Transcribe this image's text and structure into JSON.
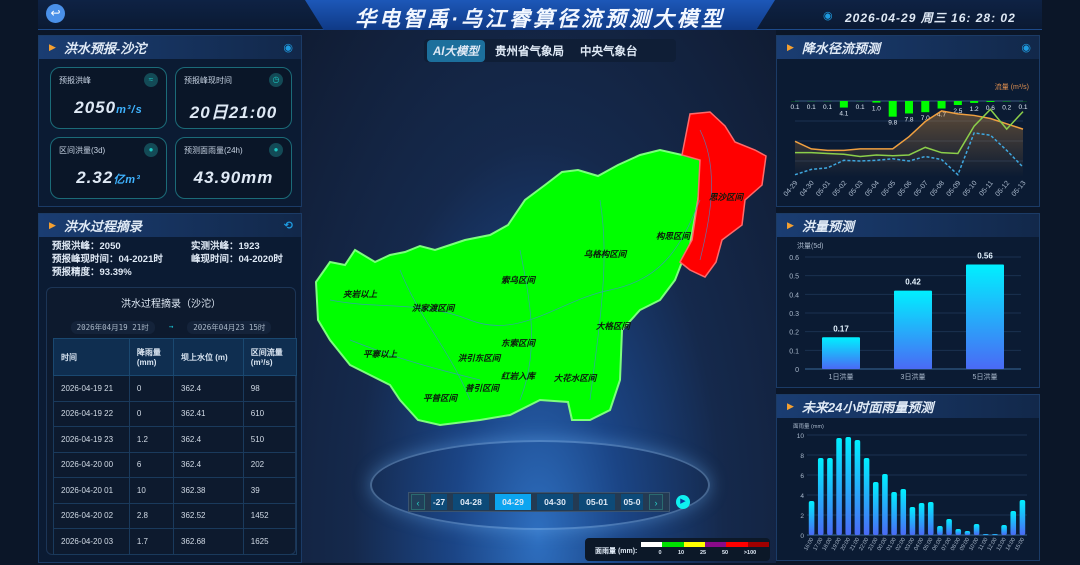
{
  "header": {
    "title": "华电智禹·乌江睿算径流预测大模型",
    "datetime": "2026-04-29 周三 16: 28: 02",
    "back_icon": "back-arrow-icon",
    "eye_icon": "eye-icon"
  },
  "source_tabs": [
    {
      "label": "AI大模型",
      "active": true
    },
    {
      "label": "贵州省气象局",
      "active": false
    },
    {
      "label": "中央气象台",
      "active": false
    }
  ],
  "flood_forecast": {
    "title": "洪水预报-沙沱",
    "cards": [
      {
        "label": "预报洪峰",
        "value": "2050",
        "unit": "m³/s",
        "icon": "flow-icon"
      },
      {
        "label": "预报峰现时间",
        "value": "20日21:00",
        "unit": "",
        "icon": "clock-icon"
      },
      {
        "label": "区间洪量(3d)",
        "value": "2.32",
        "unit": "亿m³",
        "icon": "drop-icon"
      },
      {
        "label": "预测面雨量(24h)",
        "value": "43.90mm",
        "unit": "",
        "icon": "drop-icon"
      }
    ]
  },
  "flood_process": {
    "title": "洪水过程摘录",
    "stats": [
      "预报洪峰：2050",
      "实测洪峰：1923",
      "预报峰现时间：04-2021时",
      "峰现时间：04-2020时",
      "预报精度：93.39%"
    ],
    "table_title": "洪水过程摘录（沙沱）",
    "range_start": "2026年04月19 21时",
    "range_sep": "→",
    "range_end": "2026年04月23 15时",
    "columns": [
      "时间",
      "降雨量\n(mm)",
      "坝上水位 (m)",
      "区间流量\n(m³/s)"
    ],
    "rows": [
      [
        "2026-04-19 21",
        "0",
        "362.4",
        "98"
      ],
      [
        "2026-04-19 22",
        "0",
        "362.41",
        "610"
      ],
      [
        "2026-04-19 23",
        "1.2",
        "362.4",
        "510"
      ],
      [
        "2026-04-20 00",
        "6",
        "362.4",
        "202"
      ],
      [
        "2026-04-20 01",
        "10",
        "362.38",
        "39"
      ],
      [
        "2026-04-20 02",
        "2.8",
        "362.52",
        "1452"
      ],
      [
        "2026-04-20 03",
        "1.7",
        "362.68",
        "1625"
      ]
    ]
  },
  "map": {
    "zones": [
      {
        "name": "思沙区间",
        "status": "red"
      },
      {
        "name": "构思区间",
        "status": "green"
      },
      {
        "name": "乌格构区间",
        "status": "green"
      },
      {
        "name": "索乌区间",
        "status": "green"
      },
      {
        "name": "夹岩以上",
        "status": "green"
      },
      {
        "name": "洪家渡区间",
        "status": "green"
      },
      {
        "name": "大格区间",
        "status": "green"
      },
      {
        "name": "东索区间",
        "status": "green"
      },
      {
        "name": "平寨以上",
        "status": "green"
      },
      {
        "name": "洪引东区间",
        "status": "green"
      },
      {
        "name": "红岩入库",
        "status": "green"
      },
      {
        "name": "大花水区间",
        "status": "green"
      },
      {
        "name": "普引区间",
        "status": "green"
      },
      {
        "name": "平普区间",
        "status": "green"
      }
    ],
    "colors": {
      "green": "#00ff00",
      "red": "#ff0000"
    }
  },
  "timeline": {
    "dates": [
      "-27",
      "04-28",
      "04-29",
      "04-30",
      "05-01",
      "05-0"
    ],
    "active": "04-29",
    "prev_icon": "chevron-left-icon",
    "next_icon": "chevron-right-icon",
    "play_icon": "play-icon"
  },
  "legend": {
    "title": "面雨量 (mm):",
    "ticks": [
      "0",
      "10",
      "25",
      "50",
      ">100"
    ],
    "colors": [
      "#ffffff",
      "#00e000",
      "#ffff00",
      "#8a0a8a",
      "#ff0000",
      "#a00000"
    ]
  },
  "chart_data": [
    {
      "type": "line",
      "title": "降水径流预测",
      "ylabel": "流量 (m³/s)",
      "categories": [
        "04-29",
        "04-30",
        "05-01",
        "05-02",
        "05-03",
        "05-04",
        "05-05",
        "05-06",
        "05-07",
        "05-08",
        "05-09",
        "05-10",
        "05-11",
        "05-12",
        "05-13"
      ],
      "precip_bars": [
        0.1,
        0.1,
        0.1,
        4.1,
        0.1,
        1.0,
        9.8,
        7.8,
        7.0,
        4.7,
        2.5,
        1.2,
        0.6,
        0.2,
        0.1
      ],
      "precip_labels": [
        "0.1",
        "0.1",
        "0.1",
        "4.1",
        "0.1",
        "1.0",
        "9.8",
        "7.8",
        "7.0",
        "4.7",
        "2.5",
        "1.2",
        "0.6",
        "0.2",
        "0.1"
      ],
      "series": [
        {
          "color": "#f0a040",
          "style": "solid-area",
          "values": [
            47,
            37,
            35,
            35,
            37,
            37,
            37,
            53,
            73,
            87,
            83,
            81,
            77,
            70,
            63
          ]
        },
        {
          "color": "#8ccf4a",
          "style": "solid",
          "values": [
            32,
            32,
            31,
            30,
            27,
            29,
            28,
            29,
            39,
            32,
            31,
            67,
            89,
            63,
            86
          ]
        },
        {
          "color": "#3fa8e0",
          "style": "dashed",
          "values": [
            3,
            10,
            12,
            22,
            21,
            22,
            24,
            21,
            27,
            23,
            3,
            58,
            55,
            35,
            13
          ]
        }
      ],
      "grid": true
    },
    {
      "type": "bar",
      "title": "洪量预测",
      "ylabel": "洪量(5d)",
      "categories": [
        "1日洪量",
        "3日洪量",
        "5日洪量"
      ],
      "values": [
        0.17,
        0.42,
        0.56
      ],
      "data_labels": [
        "0.17",
        "0.42",
        "0.56"
      ],
      "ylim": [
        0,
        0.6
      ],
      "yticks": [
        "0",
        "0.1",
        "0.2",
        "0.3",
        "0.4",
        "0.5",
        "0.6"
      ]
    },
    {
      "type": "bar",
      "title": "未来24小时面雨量预测",
      "ylabel": "面雨量 (mm)",
      "categories": [
        "16:00",
        "17:00",
        "18:00",
        "19:00",
        "20:00",
        "21:00",
        "22:00",
        "23:00",
        "00:00",
        "01:00",
        "02:00",
        "03:00",
        "04:00",
        "05:00",
        "06:00",
        "07:00",
        "08:00",
        "09:00",
        "10:00",
        "11:00",
        "12:00",
        "13:00",
        "14:00",
        "15:00"
      ],
      "values": [
        3.4,
        7.7,
        7.7,
        9.7,
        9.8,
        9.5,
        7.7,
        5.3,
        6.1,
        4.3,
        4.6,
        2.8,
        3.2,
        3.3,
        0.9,
        1.6,
        0.6,
        0.4,
        1.1,
        0.1,
        0.1,
        1.0,
        2.4,
        3.5
      ],
      "ylim": [
        0,
        10
      ],
      "yticks": [
        "0",
        "2",
        "4",
        "6",
        "8",
        "10"
      ]
    }
  ]
}
